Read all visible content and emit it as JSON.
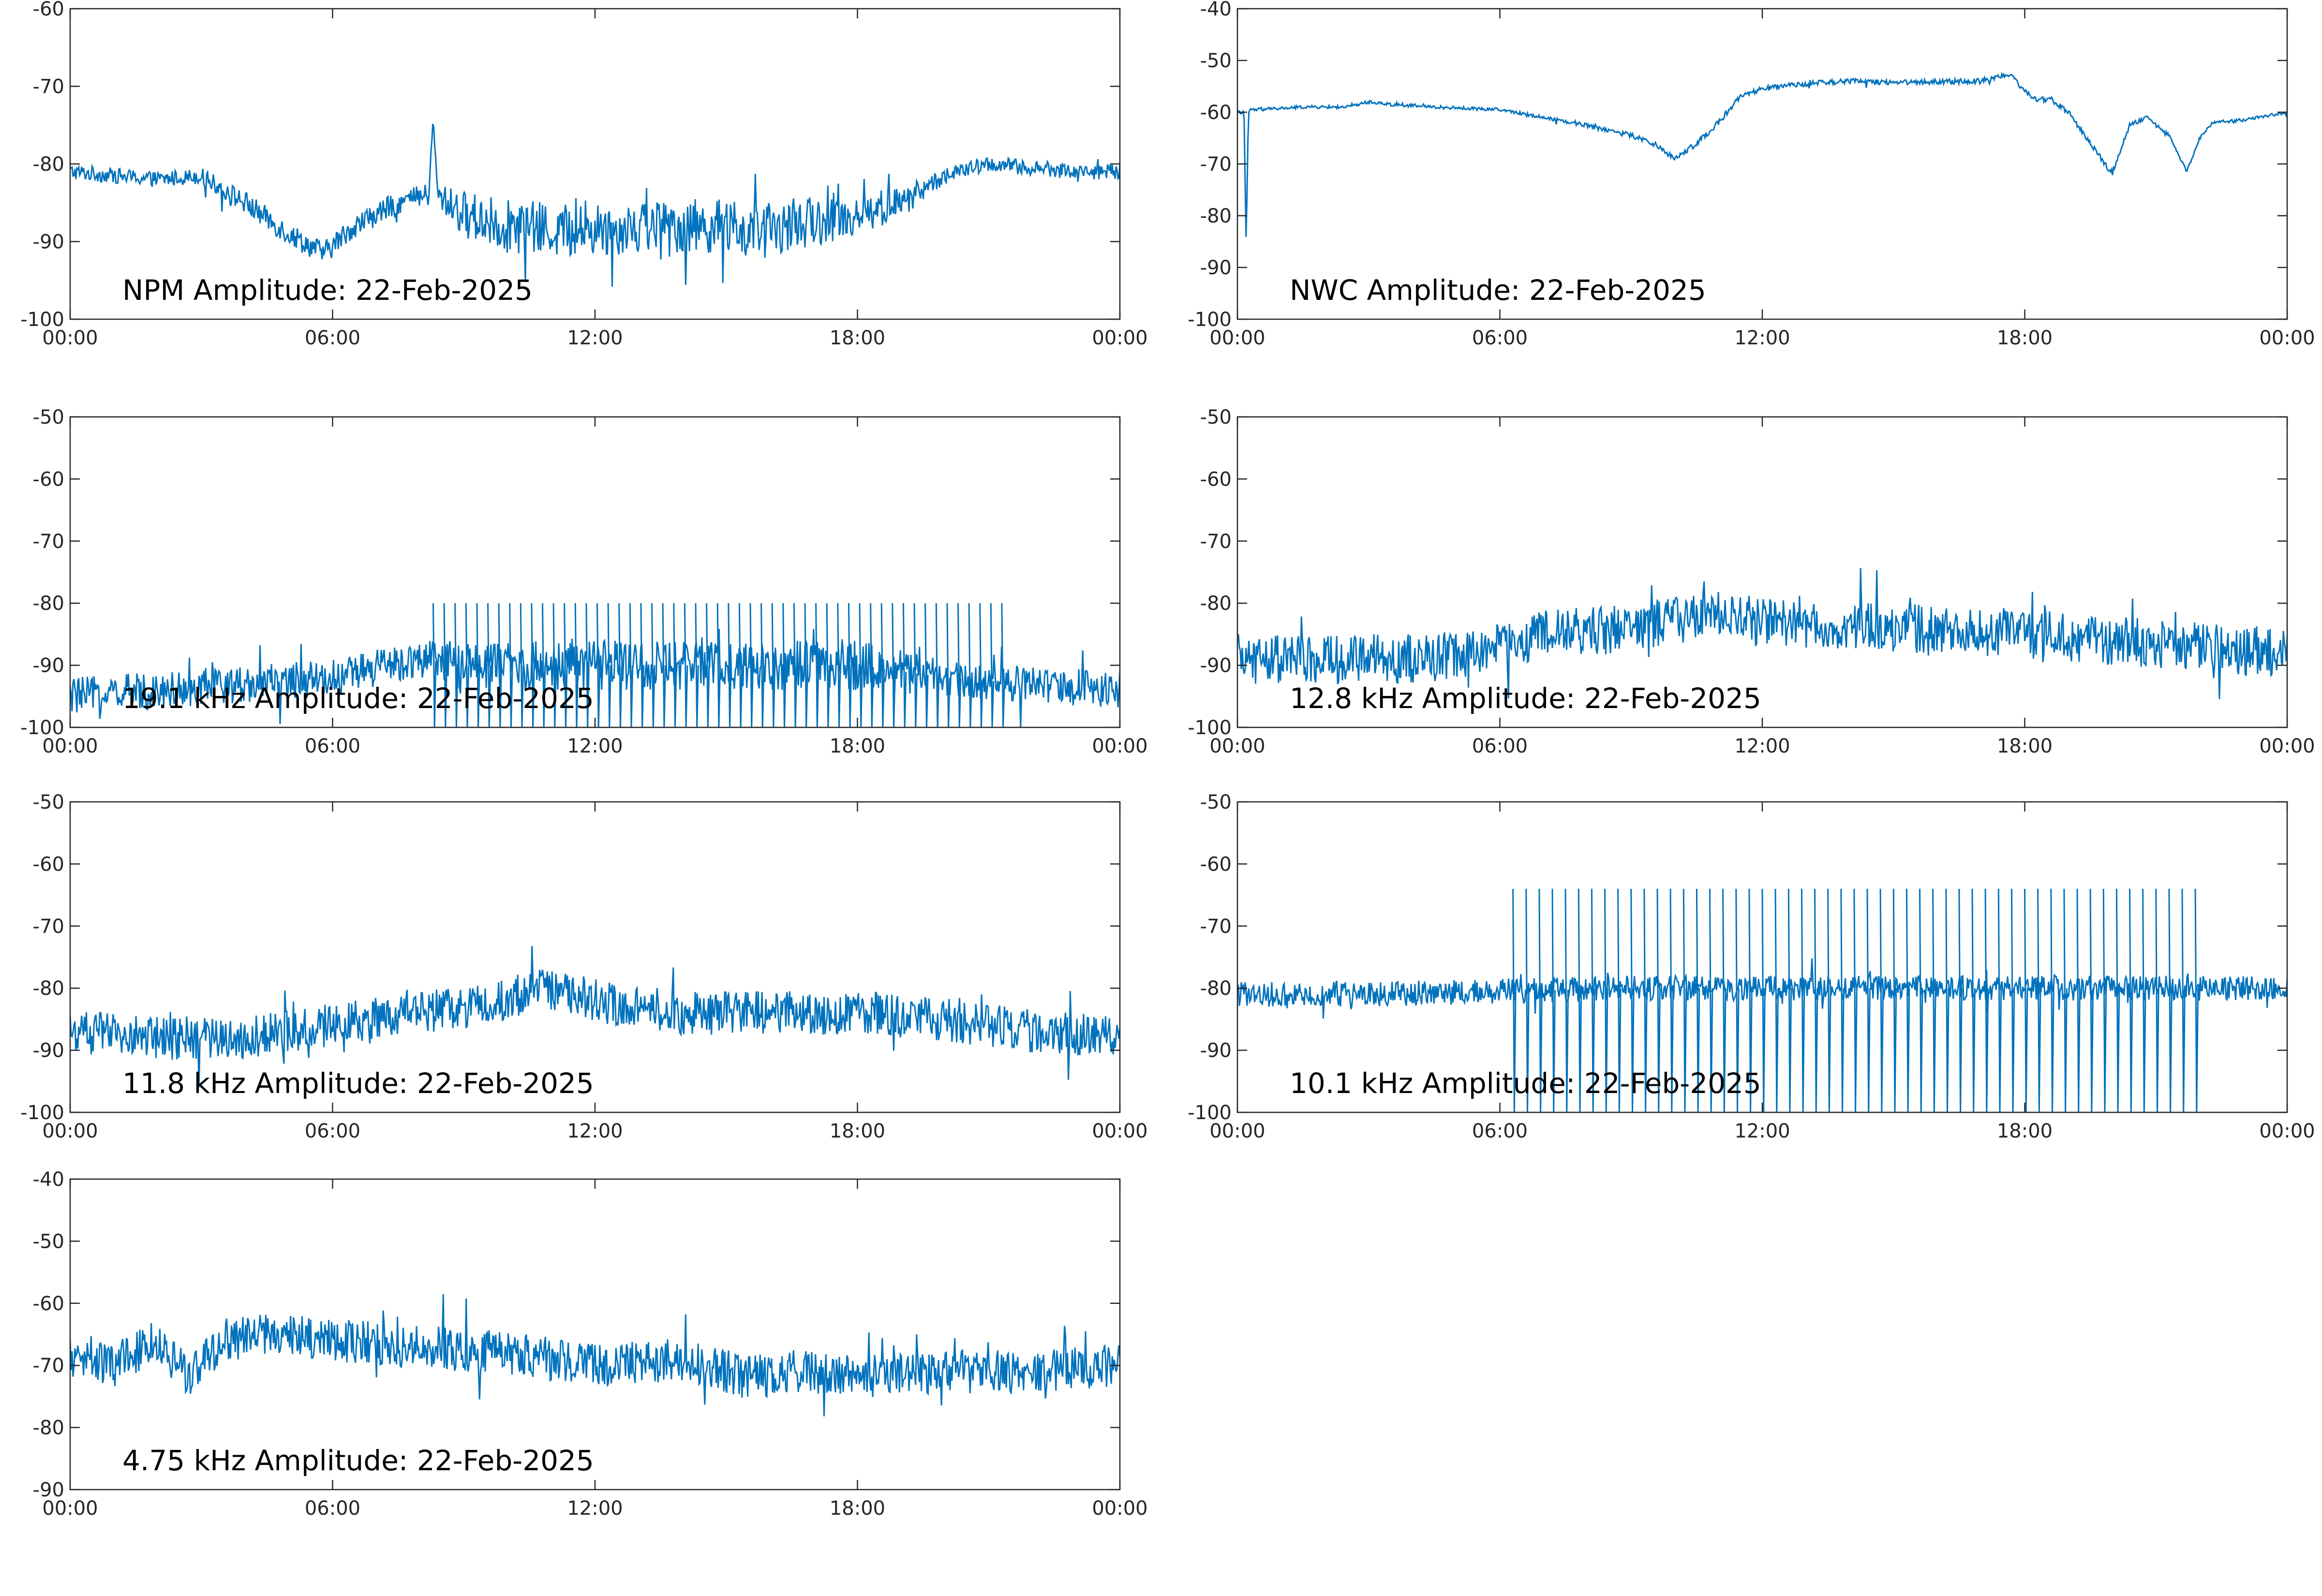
{
  "chart_data": [
    {
      "type": "line",
      "title": "NPM Amplitude: 22-Feb-2025",
      "xlabel": "",
      "ylabel": "",
      "xlim": [
        "00:00",
        "24:00"
      ],
      "ylim": [
        -100,
        -60
      ],
      "yticks": [
        -60,
        -70,
        -80,
        -90,
        -100
      ],
      "xticks": [
        "00:00",
        "06:00",
        "12:00",
        "18:00",
        "00:00"
      ],
      "color": "#0072BD",
      "grid": false,
      "x_hours": [
        0,
        1,
        2,
        3,
        4,
        5,
        5.8,
        6.5,
        7.5,
        8.2,
        8.3,
        8.4,
        9,
        10,
        11,
        12,
        13,
        14,
        15,
        15.5,
        16,
        17,
        18,
        19,
        20,
        21,
        22,
        23,
        24
      ],
      "values": [
        -81,
        -81.5,
        -82,
        -81.5,
        -85,
        -89,
        -91.5,
        -88,
        -85,
        -84,
        -74,
        -84,
        -86.5,
        -88,
        -88.5,
        -88.5,
        -88,
        -88,
        -88,
        -89,
        -88.5,
        -87.5,
        -86.5,
        -85,
        -81.5,
        -80,
        -80.5,
        -81,
        -81
      ],
      "noise_amplitude": [
        1,
        1,
        1,
        1,
        1.5,
        1.5,
        1.5,
        1.5,
        1.5,
        1.5,
        0,
        1.5,
        3,
        3.5,
        3.5,
        3.5,
        3.5,
        3.5,
        3.5,
        3.5,
        3.5,
        3,
        3,
        2,
        1,
        1,
        1,
        1,
        1
      ]
    },
    {
      "type": "line",
      "title": "NWC Amplitude: 22-Feb-2025",
      "xlabel": "",
      "ylabel": "",
      "xlim": [
        "00:00",
        "24:00"
      ],
      "ylim": [
        -100,
        -40
      ],
      "yticks": [
        -40,
        -50,
        -60,
        -70,
        -80,
        -90,
        -100
      ],
      "xticks": [
        "00:00",
        "06:00",
        "12:00",
        "18:00",
        "00:00"
      ],
      "color": "#0072BD",
      "grid": false,
      "x_hours": [
        0,
        0.15,
        0.2,
        0.25,
        0.3,
        0.5,
        1.5,
        2.5,
        3,
        3.5,
        4.5,
        6,
        7,
        8,
        9,
        9.5,
        10,
        10.5,
        11,
        11.5,
        12,
        13,
        14,
        15,
        16,
        17,
        17.7,
        17.9,
        18.2,
        18.6,
        19,
        19.5,
        20,
        20.4,
        20.8,
        21.3,
        21.7,
        22,
        22.3,
        23,
        24
      ],
      "values": [
        -60,
        -60,
        -86,
        -60,
        -59.5,
        -59.5,
        -59,
        -59,
        -58,
        -58.5,
        -59,
        -59.5,
        -61,
        -62.5,
        -64.5,
        -66,
        -69,
        -66,
        -62,
        -57,
        -55.5,
        -54.5,
        -54,
        -54.2,
        -54.1,
        -54,
        -52.5,
        -55,
        -57.5,
        -57.5,
        -60,
        -66,
        -72,
        -62.5,
        -61,
        -64.5,
        -71.5,
        -65,
        -62,
        -61.5,
        -60
      ],
      "noise_amplitude": [
        0.3,
        0.3,
        0,
        0.3,
        0.3,
        0.3,
        0.3,
        0.3,
        0.3,
        0.3,
        0.3,
        0.3,
        0.3,
        0.5,
        0.5,
        0.5,
        0.5,
        0.5,
        0.5,
        0.5,
        0.5,
        0.5,
        0.5,
        0.5,
        0.5,
        0.5,
        0.5,
        0.5,
        0.5,
        0.5,
        0.5,
        0.5,
        0.5,
        0.5,
        0.3,
        0.3,
        0.3,
        0.3,
        0.3,
        0.3,
        0.3
      ]
    },
    {
      "type": "line",
      "title": "19.1 kHz Amplitude: 22-Feb-2025",
      "xlabel": "",
      "ylabel": "",
      "xlim": [
        "00:00",
        "24:00"
      ],
      "ylim": [
        -100,
        -50
      ],
      "yticks": [
        -50,
        -60,
        -70,
        -80,
        -90,
        -100
      ],
      "xticks": [
        "00:00",
        "06:00",
        "12:00",
        "18:00",
        "00:00"
      ],
      "color": "#0072BD",
      "grid": false,
      "x_hours": [
        0,
        2,
        4,
        6,
        8,
        9,
        12,
        15,
        18,
        20,
        22,
        24
      ],
      "values": [
        -95,
        -94,
        -93,
        -92,
        -89,
        -90,
        -90,
        -90,
        -90,
        -92,
        -93,
        -94
      ],
      "noise_amplitude": [
        3,
        3,
        3,
        3,
        3,
        4,
        4,
        4,
        4,
        3,
        3,
        3
      ],
      "spikes": {
        "from_hours": 8.3,
        "to_hours": 21.3,
        "period_hours": 0.25,
        "high": -80,
        "low": -100
      }
    },
    {
      "type": "line",
      "title": "12.8 kHz Amplitude: 22-Feb-2025",
      "xlabel": "",
      "ylabel": "",
      "xlim": [
        "00:00",
        "24:00"
      ],
      "ylim": [
        -100,
        -50
      ],
      "yticks": [
        -50,
        -60,
        -70,
        -80,
        -90,
        -100
      ],
      "xticks": [
        "00:00",
        "06:00",
        "12:00",
        "18:00",
        "00:00"
      ],
      "color": "#0072BD",
      "grid": false,
      "x_hours": [
        0,
        2,
        4,
        5.5,
        7,
        9,
        10.5,
        12,
        14,
        16,
        18,
        20,
        22,
        24
      ],
      "values": [
        -89,
        -89,
        -89,
        -88,
        -85,
        -84,
        -82,
        -83,
        -84,
        -84,
        -85,
        -86,
        -87,
        -88
      ],
      "noise_amplitude": [
        4,
        4,
        4,
        4,
        4,
        4,
        4,
        4,
        4,
        4,
        4,
        4,
        4,
        4
      ]
    },
    {
      "type": "line",
      "title": "11.8 kHz Amplitude: 22-Feb-2025",
      "xlabel": "",
      "ylabel": "",
      "xlim": [
        "00:00",
        "24:00"
      ],
      "ylim": [
        -100,
        -50
      ],
      "yticks": [
        -50,
        -60,
        -70,
        -80,
        -90,
        -100
      ],
      "xticks": [
        "00:00",
        "06:00",
        "12:00",
        "18:00",
        "00:00"
      ],
      "color": "#0072BD",
      "grid": false,
      "x_hours": [
        0,
        2,
        4,
        6,
        8,
        10,
        11,
        12,
        14,
        16,
        18,
        20,
        22,
        24
      ],
      "values": [
        -87,
        -88,
        -88,
        -86,
        -84,
        -82,
        -80,
        -82,
        -84,
        -84,
        -84,
        -85,
        -87,
        -88
      ],
      "noise_amplitude": [
        3.5,
        3.5,
        3.5,
        3.5,
        3.5,
        3.5,
        3.5,
        3.5,
        3.5,
        3.5,
        3.5,
        3.5,
        3.5,
        3.5
      ]
    },
    {
      "type": "line",
      "title": "10.1 kHz Amplitude: 22-Feb-2025",
      "xlabel": "",
      "ylabel": "",
      "xlim": [
        "00:00",
        "24:00"
      ],
      "ylim": [
        -100,
        -50
      ],
      "yticks": [
        -50,
        -60,
        -70,
        -80,
        -90,
        -100
      ],
      "xticks": [
        "00:00",
        "06:00",
        "12:00",
        "18:00",
        "00:00"
      ],
      "color": "#0072BD",
      "grid": false,
      "x_hours": [
        0,
        3,
        6,
        9,
        12,
        15,
        18,
        21,
        24
      ],
      "values": [
        -81,
        -81,
        -80.5,
        -80,
        -80,
        -80,
        -80,
        -80,
        -80
      ],
      "noise_amplitude": [
        2,
        2,
        2,
        2,
        2,
        2,
        2,
        2,
        2
      ],
      "spikes": {
        "from_hours": 6.3,
        "to_hours": 22,
        "period_hours": 0.3,
        "high": -64,
        "low": -100
      }
    },
    {
      "type": "line",
      "title": "4.75 kHz Amplitude: 22-Feb-2025",
      "xlabel": "",
      "ylabel": "",
      "xlim": [
        "00:00",
        "24:00"
      ],
      "ylim": [
        -90,
        -40
      ],
      "yticks": [
        -40,
        -50,
        -60,
        -70,
        -80,
        -90
      ],
      "xticks": [
        "00:00",
        "06:00",
        "12:00",
        "18:00",
        "00:00"
      ],
      "color": "#0072BD",
      "grid": false,
      "x_hours": [
        0,
        1,
        2,
        2.7,
        3.5,
        4.5,
        6,
        8,
        10,
        12,
        14,
        15.5,
        16.5,
        18,
        20,
        22,
        24
      ],
      "values": [
        -69,
        -70,
        -66,
        -72,
        -66,
        -65,
        -66,
        -67,
        -68,
        -70,
        -69,
        -72,
        -71,
        -72,
        -71,
        -71,
        -70
      ],
      "noise_amplitude": [
        3.5,
        3.5,
        3.5,
        3.5,
        3.5,
        3.5,
        3.5,
        3.5,
        3.5,
        3.5,
        3.5,
        3.5,
        3.5,
        3.5,
        3.5,
        3.5,
        3.5
      ]
    }
  ]
}
